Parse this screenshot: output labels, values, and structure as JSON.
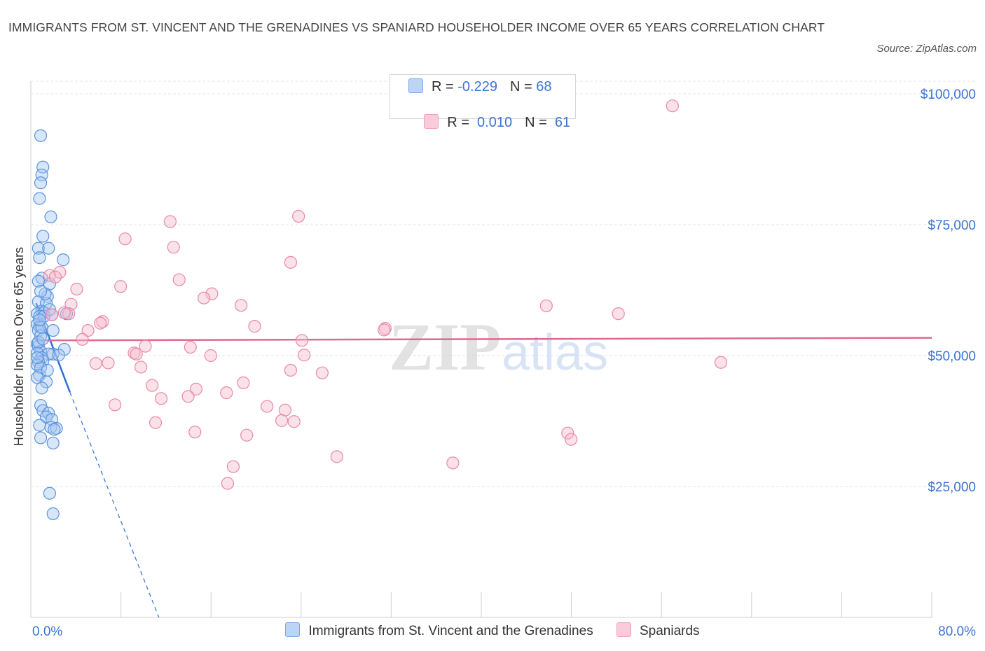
{
  "title": "IMMIGRANTS FROM ST. VINCENT AND THE GRENADINES VS SPANIARD HOUSEHOLDER INCOME OVER 65 YEARS CORRELATION CHART",
  "source": "Source: ZipAtlas.com",
  "watermark": {
    "zip": "ZIP",
    "atlas": "atlas"
  },
  "legend": {
    "rows": [
      {
        "r_label": "R = ",
        "r_value": "-0.229",
        "n_label": "N = ",
        "n_value": "68"
      },
      {
        "r_label": "R = ",
        "r_value": " 0.010",
        "n_label": "N = ",
        "n_value": " 61"
      }
    ]
  },
  "colors": {
    "blue_fill": "#a9c8f2",
    "blue_stroke": "#5a93dd",
    "blue_line": "#2f6fd6",
    "pink_fill": "#f7bccd",
    "pink_stroke": "#e889a8",
    "pink_line": "#e06890",
    "axis_text": "#3b74d3",
    "grid": "#e4e4e4"
  },
  "chart_data": {
    "type": "scatter",
    "title": "IMMIGRANTS FROM ST. VINCENT AND THE GRENADINES VS SPANIARD HOUSEHOLDER INCOME OVER 65 YEARS CORRELATION CHART",
    "xlabel": "",
    "ylabel": "Householder Income Over 65 years",
    "xlim": [
      0,
      80
    ],
    "ylim": [
      0,
      100000
    ],
    "x_tick_labels": [
      "0.0%",
      "80.0%"
    ],
    "y_ticks": [
      25000,
      50000,
      75000,
      100000
    ],
    "y_tick_labels": [
      "$25,000",
      "$50,000",
      "$75,000",
      "$100,000"
    ],
    "grid": true,
    "legend_position": "bottom",
    "series": [
      {
        "name": "Immigrants from St. Vincent and the Grenadines",
        "color": "#5a93dd",
        "r": -0.229,
        "n": 68,
        "trend": {
          "x0": 0.1,
          "y0": 60000,
          "x1": 3.1,
          "y1": 43000,
          "dash_to_x": 11,
          "dash_to_y": 0
        },
        "points": [
          [
            0.5,
            92000
          ],
          [
            0.7,
            86000
          ],
          [
            0.6,
            84500
          ],
          [
            0.5,
            83000
          ],
          [
            0.4,
            80000
          ],
          [
            1.4,
            76500
          ],
          [
            0.7,
            72800
          ],
          [
            0.3,
            70500
          ],
          [
            1.2,
            70500
          ],
          [
            0.4,
            68700
          ],
          [
            2.5,
            68300
          ],
          [
            0.6,
            64800
          ],
          [
            0.3,
            64200
          ],
          [
            1.3,
            63700
          ],
          [
            1.1,
            61300
          ],
          [
            0.3,
            60300
          ],
          [
            1.0,
            60000
          ],
          [
            0.6,
            58500
          ],
          [
            0.2,
            58000
          ],
          [
            0.8,
            58200
          ],
          [
            2.8,
            58000
          ],
          [
            1.5,
            57800
          ],
          [
            0.4,
            57500
          ],
          [
            0.2,
            56000
          ],
          [
            0.4,
            55500
          ],
          [
            1.6,
            54800
          ],
          [
            0.3,
            54800
          ],
          [
            0.5,
            53800
          ],
          [
            0.2,
            52200
          ],
          [
            0.3,
            51800
          ],
          [
            2.6,
            51200
          ],
          [
            0.5,
            50800
          ],
          [
            0.2,
            50500
          ],
          [
            1.6,
            50300
          ],
          [
            1.2,
            50300
          ],
          [
            2.1,
            50100
          ],
          [
            0.6,
            49600
          ],
          [
            0.7,
            49000
          ],
          [
            0.3,
            48800
          ],
          [
            0.2,
            48200
          ],
          [
            0.5,
            47700
          ],
          [
            0.4,
            46300
          ],
          [
            0.2,
            45800
          ],
          [
            1.0,
            45000
          ],
          [
            0.6,
            43800
          ],
          [
            0.5,
            40500
          ],
          [
            0.7,
            39500
          ],
          [
            1.2,
            39000
          ],
          [
            1.0,
            38300
          ],
          [
            1.5,
            37800
          ],
          [
            0.4,
            36700
          ],
          [
            1.4,
            36300
          ],
          [
            1.9,
            36100
          ],
          [
            1.7,
            35900
          ],
          [
            0.5,
            34300
          ],
          [
            1.6,
            33300
          ],
          [
            1.3,
            23700
          ],
          [
            1.6,
            19800
          ],
          [
            0.8,
            57500
          ],
          [
            0.3,
            52600
          ],
          [
            0.6,
            55400
          ],
          [
            0.9,
            61800
          ],
          [
            0.2,
            49600
          ],
          [
            1.1,
            47200
          ],
          [
            0.4,
            56800
          ],
          [
            0.7,
            53200
          ],
          [
            1.3,
            58800
          ],
          [
            0.5,
            62300
          ]
        ]
      },
      {
        "name": "Spaniards",
        "color": "#e889a8",
        "r": 0.01,
        "n": 61,
        "trend": {
          "x0": 0.1,
          "y0": 52900,
          "x1": 80,
          "y1": 53400
        },
        "points": [
          [
            56.6,
            97700
          ],
          [
            23.4,
            76600
          ],
          [
            12.0,
            75600
          ],
          [
            8.0,
            72300
          ],
          [
            12.3,
            70700
          ],
          [
            22.7,
            67800
          ],
          [
            2.2,
            65900
          ],
          [
            1.3,
            65300
          ],
          [
            1.8,
            65000
          ],
          [
            12.8,
            64500
          ],
          [
            7.6,
            63200
          ],
          [
            3.7,
            62700
          ],
          [
            15.7,
            61800
          ],
          [
            15.0,
            61000
          ],
          [
            3.2,
            59800
          ],
          [
            18.3,
            59600
          ],
          [
            45.4,
            59500
          ],
          [
            51.8,
            58000
          ],
          [
            1.5,
            57800
          ],
          [
            3.0,
            58000
          ],
          [
            6.0,
            56500
          ],
          [
            5.8,
            56200
          ],
          [
            19.5,
            55600
          ],
          [
            31.1,
            55200
          ],
          [
            31.0,
            54900
          ],
          [
            4.7,
            54800
          ],
          [
            4.2,
            53100
          ],
          [
            23.7,
            52900
          ],
          [
            9.8,
            51800
          ],
          [
            13.8,
            51600
          ],
          [
            8.8,
            50500
          ],
          [
            9.0,
            50300
          ],
          [
            23.9,
            50100
          ],
          [
            15.6,
            50000
          ],
          [
            6.5,
            48600
          ],
          [
            5.4,
            48500
          ],
          [
            60.9,
            48700
          ],
          [
            9.4,
            47800
          ],
          [
            22.7,
            47200
          ],
          [
            25.5,
            46700
          ],
          [
            18.5,
            44800
          ],
          [
            10.4,
            44300
          ],
          [
            14.3,
            43600
          ],
          [
            17.0,
            42900
          ],
          [
            11.2,
            41800
          ],
          [
            13.6,
            42200
          ],
          [
            7.1,
            40600
          ],
          [
            20.6,
            40300
          ],
          [
            22.2,
            39600
          ],
          [
            10.7,
            37200
          ],
          [
            21.9,
            37600
          ],
          [
            23.0,
            37400
          ],
          [
            14.2,
            35400
          ],
          [
            47.3,
            35200
          ],
          [
            18.8,
            34800
          ],
          [
            47.6,
            34000
          ],
          [
            26.8,
            30700
          ],
          [
            37.1,
            29500
          ],
          [
            17.6,
            28800
          ],
          [
            17.1,
            25600
          ],
          [
            2.6,
            58200
          ]
        ]
      }
    ]
  },
  "bottom_legend": [
    {
      "label": "Immigrants from St. Vincent and the Grenadines"
    },
    {
      "label": "Spaniards"
    }
  ]
}
